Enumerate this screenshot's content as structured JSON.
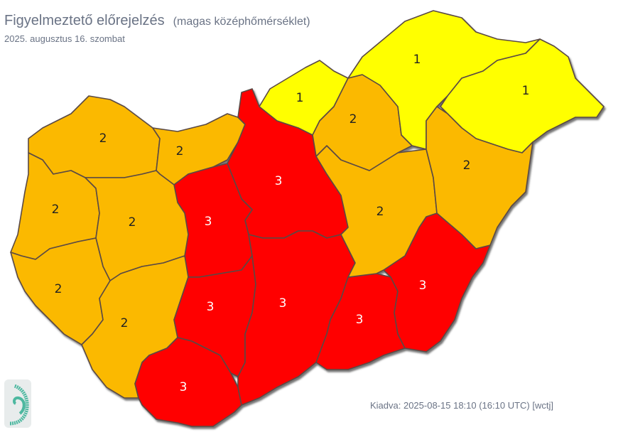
{
  "header": {
    "title": "Figyelmeztető előrejelzés",
    "subtitle": "(magas középhőmérséklet)",
    "date": "2025. augusztus 16. szombat"
  },
  "footer": {
    "issued": "Kiadva: 2025-08-15 18:10 (16:10 UTC) [wctj]"
  },
  "logo": {
    "icon": "swirl-logo-icon",
    "color": "#4db8a0"
  },
  "map": {
    "level_colors": {
      "1": "#ffff00",
      "2": "#fbb900",
      "3": "#ff0000"
    },
    "border_color": "#5a4a44",
    "regions": [
      {
        "level": "2"
      },
      {
        "level": "2"
      },
      {
        "level": "3"
      },
      {
        "level": "3"
      },
      {
        "level": "2"
      },
      {
        "level": "2"
      },
      {
        "level": "2"
      },
      {
        "level": "2"
      },
      {
        "level": "3"
      },
      {
        "level": "3"
      },
      {
        "level": "3"
      },
      {
        "level": "3"
      },
      {
        "level": "3"
      },
      {
        "level": "2"
      },
      {
        "level": "1"
      },
      {
        "level": "2"
      },
      {
        "level": "1"
      },
      {
        "level": "1"
      },
      {
        "level": "2"
      }
    ]
  }
}
